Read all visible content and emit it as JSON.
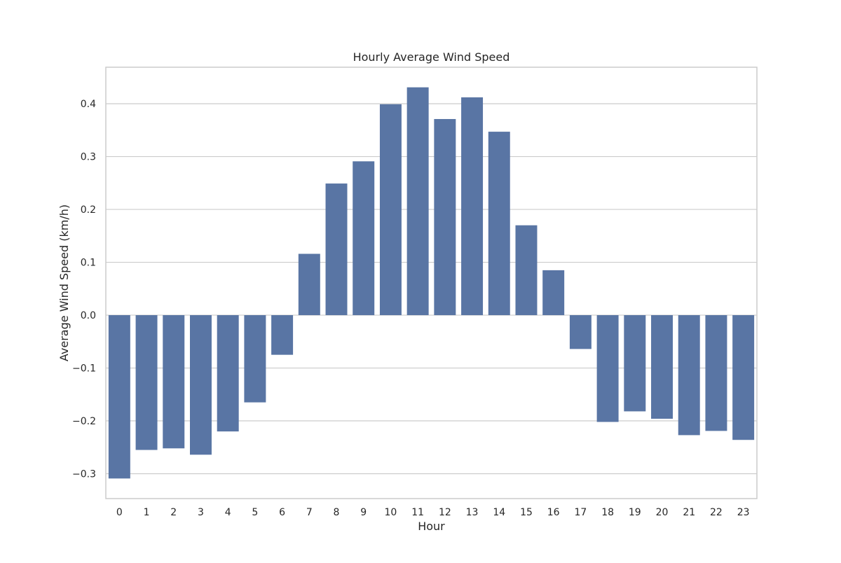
{
  "chart_data": {
    "type": "bar",
    "title": "Hourly Average Wind Speed",
    "xlabel": "Hour",
    "ylabel": "Average Wind Speed (km/h)",
    "categories": [
      "0",
      "1",
      "2",
      "3",
      "4",
      "5",
      "6",
      "7",
      "8",
      "9",
      "10",
      "11",
      "12",
      "13",
      "14",
      "15",
      "16",
      "17",
      "18",
      "19",
      "20",
      "21",
      "22",
      "23"
    ],
    "values": [
      -0.309,
      -0.255,
      -0.252,
      -0.264,
      -0.22,
      -0.165,
      -0.075,
      0.116,
      0.249,
      0.291,
      0.399,
      0.431,
      0.371,
      0.412,
      0.347,
      0.17,
      0.085,
      -0.064,
      -0.202,
      -0.182,
      -0.196,
      -0.227,
      -0.219,
      -0.236
    ],
    "ylim": [
      -0.347,
      0.469
    ],
    "yticks": [
      -0.3,
      -0.2,
      -0.1,
      0.0,
      0.1,
      0.2,
      0.3,
      0.4
    ],
    "ytick_labels": [
      "−0.3",
      "−0.2",
      "−0.1",
      "0.0",
      "0.1",
      "0.2",
      "0.3",
      "0.4"
    ],
    "grid": true,
    "bar_color": "#5975a4",
    "grid_color": "#cccccc",
    "spine_color": "#cccccc"
  }
}
